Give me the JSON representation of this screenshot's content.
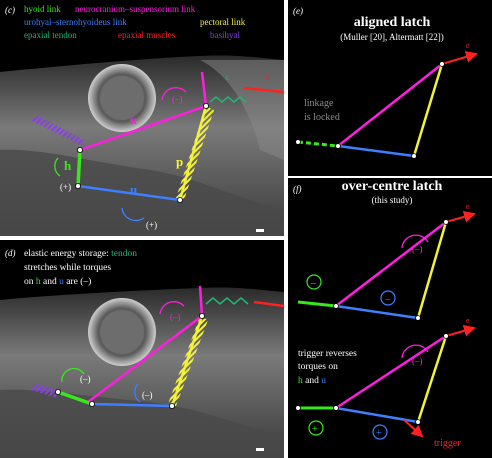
{
  "colors": {
    "hyoid": "#39e81c",
    "neuro": "#ff1ee0",
    "urohyal": "#3d7fff",
    "pectoral": "#f2f23a",
    "tendon": "#22b573",
    "muscles": "#ff2020",
    "basihyal": "#8a3fe6",
    "white": "#ffffff"
  },
  "panel_c": {
    "label": "(c)",
    "legend": {
      "hyoid": "hyoid link",
      "neuro": "neurocranium–suspensorium link",
      "urohyal": "urohyal–sternohyoideus link",
      "pectoral": "pectoral link",
      "tendon": "epaxial tendon",
      "muscles": "epaxial muscles",
      "basihyal": "basihyal"
    },
    "link_labels": {
      "n": "n",
      "h": "h",
      "u": "u",
      "p": "p",
      "t": "t",
      "e": "e"
    },
    "torques": {
      "neuro": "(–)",
      "hyoid": "(+)",
      "urohyal": "(+)"
    }
  },
  "panel_d": {
    "label": "(d)",
    "caption": {
      "line1_prefix": "elastic energy storage: ",
      "line1_tendon": "tendon",
      "line2": "stretches while torques",
      "line3_on": "on ",
      "line3_h": "h",
      "line3_and": " and ",
      "line3_u": "u",
      "line3_suffix": " are (–)"
    },
    "torques": {
      "neuro": "(–)",
      "hyoid": "(–)",
      "urohyal": "(–)"
    }
  },
  "panel_e": {
    "label": "(e)",
    "title": "aligned latch",
    "subtitle": "(Muller [20], Altermatt [22])",
    "note_line1": "linkage",
    "note_line2": "is locked",
    "e_label": "e"
  },
  "panel_f": {
    "label": "(f)",
    "title": "over-centre latch",
    "subtitle": "(this study)",
    "top": {
      "e_label": "e",
      "torque_neuro": "(–)",
      "torque_hyoid": "–",
      "torque_urohyal": "–"
    },
    "bottom": {
      "e_label": "e",
      "torque_neuro": "(–)",
      "torque_hyoid": "+",
      "torque_urohyal": "+",
      "trigger": "trigger",
      "text_line1": "trigger reverses",
      "text_line2": "torques on",
      "text_h": "h",
      "text_and": " and ",
      "text_u": "u"
    }
  }
}
